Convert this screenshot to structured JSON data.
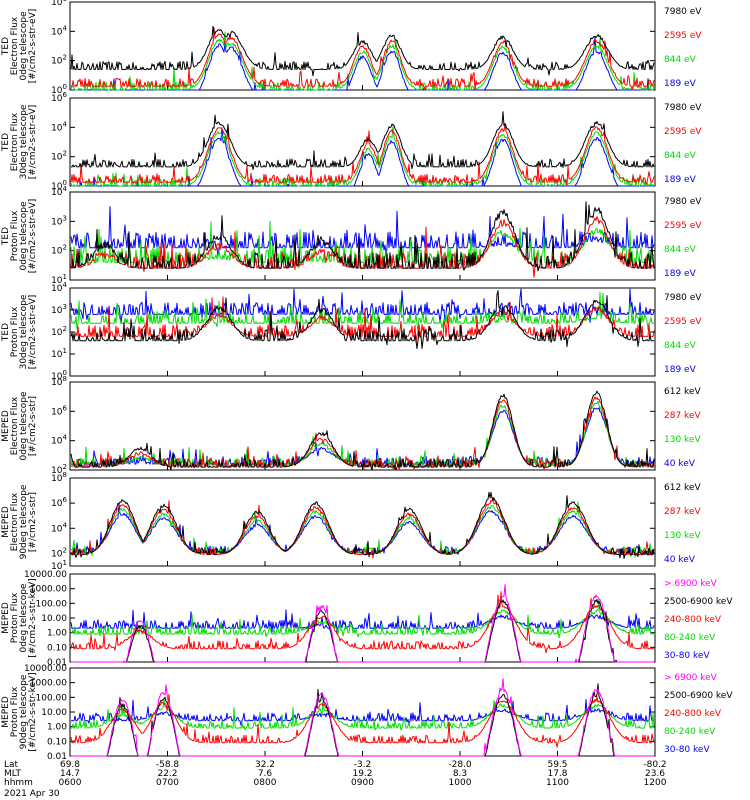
{
  "colors": {
    "blue": "#0000ff",
    "red": "#ff0000",
    "green": "#00dd00",
    "black": "#000000",
    "magenta": "#ff00ff"
  },
  "date_label": "2021 Apr 30",
  "footer": {
    "row_labels": [
      "Lat",
      "MLT",
      "hhmm"
    ],
    "columns": [
      {
        "lat": "69.8",
        "mlt": "14.7",
        "hhmm": "0600"
      },
      {
        "lat": "-58.8",
        "mlt": "22.2",
        "hhmm": "0700"
      },
      {
        "lat": "32.2",
        "mlt": "7.6",
        "hhmm": "0800"
      },
      {
        "lat": "-3.2",
        "mlt": "19.2",
        "hhmm": "0900"
      },
      {
        "lat": "-28.0",
        "mlt": "8.3",
        "hhmm": "1000"
      },
      {
        "lat": "59.5",
        "mlt": "17.8",
        "hhmm": "1100"
      },
      {
        "lat": "-80.2",
        "mlt": "23.6",
        "hhmm": "1200"
      }
    ]
  },
  "chart_data": [
    {
      "type": "line",
      "ylabel": [
        "TED",
        "Electron Flux",
        "0deg telescope",
        "[#/cm2-s-str-eV]"
      ],
      "ytick_labels": [
        "10^0",
        "10^2",
        "10^4",
        "10^6"
      ],
      "ylim": [
        1,
        1000000
      ],
      "yscale": "log",
      "series": [
        {
          "name": "7980 eV",
          "color": "black"
        },
        {
          "name": "2595 eV",
          "color": "red"
        },
        {
          "name": "844 eV",
          "color": "green"
        },
        {
          "name": "189 eV",
          "color": "blue"
        }
      ],
      "bumps": [
        [
          0.255,
          0.48,
          0.19,
          4.1,
          0.2
        ],
        [
          0.275,
          0.42,
          0.21,
          3.9,
          0.2
        ],
        [
          0.5,
          0.44,
          0.16,
          3.3,
          0.2
        ],
        [
          0.55,
          0.58,
          0.16,
          3.7,
          0.2
        ],
        [
          0.74,
          0.44,
          0.18,
          3.6,
          0.2
        ],
        [
          0.9,
          0.44,
          0.2,
          3.7,
          0.2
        ]
      ],
      "base": [
        1.4,
        0.25,
        0.0,
        -0.6
      ]
    },
    {
      "type": "line",
      "ylabel": [
        "TED",
        "Electron Flux",
        "30deg telescope",
        "[#/cm2-s-str-eV]"
      ],
      "ytick_labels": [
        "10^0",
        "10^2",
        "10^4",
        "10^6"
      ],
      "ylim": [
        1,
        1000000
      ],
      "yscale": "log",
      "series": [
        {
          "name": "7980 eV",
          "color": "black"
        },
        {
          "name": "2595 eV",
          "color": "red"
        },
        {
          "name": "844 eV",
          "color": "green"
        },
        {
          "name": "189 eV",
          "color": "blue"
        }
      ],
      "bumps": [
        [
          0.255,
          0.48,
          0.2,
          4.3,
          0.2
        ],
        [
          0.51,
          0.43,
          0.15,
          3.2,
          0.2
        ],
        [
          0.55,
          0.58,
          0.16,
          4.1,
          0.2
        ],
        [
          0.74,
          0.44,
          0.18,
          4.2,
          0.2
        ],
        [
          0.9,
          0.44,
          0.2,
          4.3,
          0.2
        ]
      ],
      "base": [
        1.3,
        0.25,
        0.0,
        -0.6
      ]
    },
    {
      "type": "line",
      "ylabel": [
        "TED",
        "Proton Flux",
        "0deg telescope",
        "[#/cm2-s-str-eV]"
      ],
      "ytick_labels": [
        "10^1",
        "10^2",
        "10^3",
        "10^4"
      ],
      "ylim": [
        10,
        10000
      ],
      "yscale": "log",
      "series": [
        {
          "name": "7980 eV",
          "color": "black"
        },
        {
          "name": "2595 eV",
          "color": "red"
        },
        {
          "name": "844 eV",
          "color": "green"
        },
        {
          "name": "189 eV",
          "color": "blue"
        }
      ],
      "bumps": [
        [
          0.06,
          0.44,
          0.2,
          2.2,
          0.1
        ],
        [
          0.255,
          0.48,
          0.22,
          2.5,
          0.1
        ],
        [
          0.43,
          0.44,
          0.21,
          2.3,
          0.1
        ],
        [
          0.74,
          0.44,
          0.22,
          3.3,
          0.1
        ],
        [
          0.9,
          0.44,
          0.22,
          3.4,
          0.1
        ]
      ],
      "base": [
        1.4,
        1.4,
        1.6,
        2.1
      ]
    },
    {
      "type": "line",
      "ylabel": [
        "TED",
        "Proton Flux",
        "30deg telescope",
        "[#/cm2-s-str-eV]"
      ],
      "ytick_labels": [
        "10^0",
        "10^1",
        "10^2",
        "10^3",
        "10^4"
      ],
      "ylim": [
        1,
        10000
      ],
      "yscale": "log",
      "series": [
        {
          "name": "7980 eV",
          "color": "black"
        },
        {
          "name": "2595 eV",
          "color": "red"
        },
        {
          "name": "844 eV",
          "color": "green"
        },
        {
          "name": "189 eV",
          "color": "blue"
        }
      ],
      "bumps": [
        [
          0.255,
          0.48,
          0.22,
          3.1,
          0.0
        ],
        [
          0.43,
          0.44,
          0.21,
          3.0,
          0.0
        ],
        [
          0.74,
          0.44,
          0.22,
          3.2,
          0.0
        ],
        [
          0.9,
          0.44,
          0.22,
          3.4,
          0.0
        ]
      ],
      "base": [
        1.6,
        1.8,
        2.4,
        2.8
      ]
    },
    {
      "type": "line",
      "ylabel": [
        "MEPED",
        "Electron Flux",
        "0deg telescope",
        "[#/cm2-s-str]"
      ],
      "ytick_labels": [
        "10^2",
        "10^4",
        "10^6",
        "10^8"
      ],
      "ylim": [
        100,
        100000000
      ],
      "yscale": "log",
      "series": [
        {
          "name": "612 keV",
          "color": "black"
        },
        {
          "name": "287 keV",
          "color": "red"
        },
        {
          "name": "130 keV",
          "color": "green"
        },
        {
          "name": "40 keV",
          "color": "blue"
        }
      ],
      "bumps": [
        [
          0.12,
          0.44,
          0.19,
          3.5,
          0.1
        ],
        [
          0.43,
          0.44,
          0.21,
          4.5,
          0.1
        ],
        [
          0.74,
          0.52,
          0.18,
          7.1,
          0.15
        ],
        [
          0.9,
          0.52,
          0.18,
          7.3,
          0.15
        ]
      ],
      "base": [
        2.2,
        2.25,
        2.3,
        2.4
      ]
    },
    {
      "type": "line",
      "ylabel": [
        "MEPED",
        "Electron Flux",
        "90deg telescope",
        "[#/cm2-s-str]"
      ],
      "ytick_labels": [
        "10^1",
        "10^2",
        "10^4",
        "10^6",
        "10^8"
      ],
      "ylim": [
        10,
        100000000
      ],
      "yscale": "log",
      "series": [
        {
          "name": "612 keV",
          "color": "black"
        },
        {
          "name": "287 keV",
          "color": "red"
        },
        {
          "name": "130 keV",
          "color": "green"
        },
        {
          "name": "40 keV",
          "color": "blue"
        }
      ],
      "bumps": [
        [
          0.09,
          0.44,
          0.22,
          6.2,
          0.2
        ],
        [
          0.16,
          0.48,
          0.23,
          5.8,
          0.2
        ],
        [
          0.32,
          0.44,
          0.22,
          5.3,
          0.2
        ],
        [
          0.42,
          0.48,
          0.23,
          6.0,
          0.2
        ],
        [
          0.58,
          0.44,
          0.22,
          5.5,
          0.2
        ],
        [
          0.72,
          0.48,
          0.24,
          6.4,
          0.2
        ],
        [
          0.86,
          0.48,
          0.24,
          6.0,
          0.2
        ]
      ],
      "base": [
        1.9,
        1.9,
        2.0,
        2.05
      ]
    },
    {
      "type": "line",
      "ylabel": [
        "MEPED",
        "Proton Flux",
        "0deg telescope",
        "[#/cm2-s-str-keV]"
      ],
      "ytick_labels": [
        "0.01",
        "0.10",
        "1.00",
        "10.00",
        "100.00",
        "1000.00",
        "10000.00"
      ],
      "ylim": [
        0.01,
        10000
      ],
      "yscale": "log",
      "series": [
        {
          "name": "> 6900 keV",
          "color": "magenta"
        },
        {
          "name": "2500-6900 keV",
          "color": "black"
        },
        {
          "name": "240-800 keV",
          "color": "red"
        },
        {
          "name": "80-240 keV",
          "color": "green"
        },
        {
          "name": "30-80 keV",
          "color": "blue"
        }
      ],
      "bumps": [
        [
          0.12,
          0.44,
          0.22,
          0.8,
          0.0
        ],
        [
          0.43,
          0.44,
          0.23,
          1.8,
          0.0
        ],
        [
          0.74,
          0.5,
          0.24,
          2.5,
          0.0
        ],
        [
          0.9,
          0.5,
          0.24,
          2.5,
          0.0
        ]
      ],
      "base": [
        -5,
        -5,
        -1.1,
        -0.1,
        0.3
      ]
    },
    {
      "type": "line",
      "ylabel": [
        "MEPED",
        "Proton Flux",
        "90deg telescope",
        "[#/cm2-s-str-keV]"
      ],
      "ytick_labels": [
        "0.01",
        "0.10",
        "1.00",
        "10.00",
        "100.00",
        "1000.00",
        "10000.00"
      ],
      "ylim": [
        0.01,
        10000
      ],
      "yscale": "log",
      "series": [
        {
          "name": "> 6900 keV",
          "color": "magenta"
        },
        {
          "name": "2500-6900 keV",
          "color": "black"
        },
        {
          "name": "240-800 keV",
          "color": "red"
        },
        {
          "name": "80-240 keV",
          "color": "green"
        },
        {
          "name": "30-80 keV",
          "color": "blue"
        }
      ],
      "bumps": [
        [
          0.09,
          0.44,
          0.22,
          1.8,
          0.0
        ],
        [
          0.16,
          0.48,
          0.22,
          2.3,
          0.0
        ],
        [
          0.43,
          0.44,
          0.23,
          2.2,
          0.0
        ],
        [
          0.74,
          0.5,
          0.24,
          2.5,
          0.0
        ],
        [
          0.9,
          0.5,
          0.24,
          2.5,
          0.0
        ]
      ],
      "base": [
        -5,
        -5,
        -1.1,
        -0.1,
        0.4
      ]
    }
  ]
}
